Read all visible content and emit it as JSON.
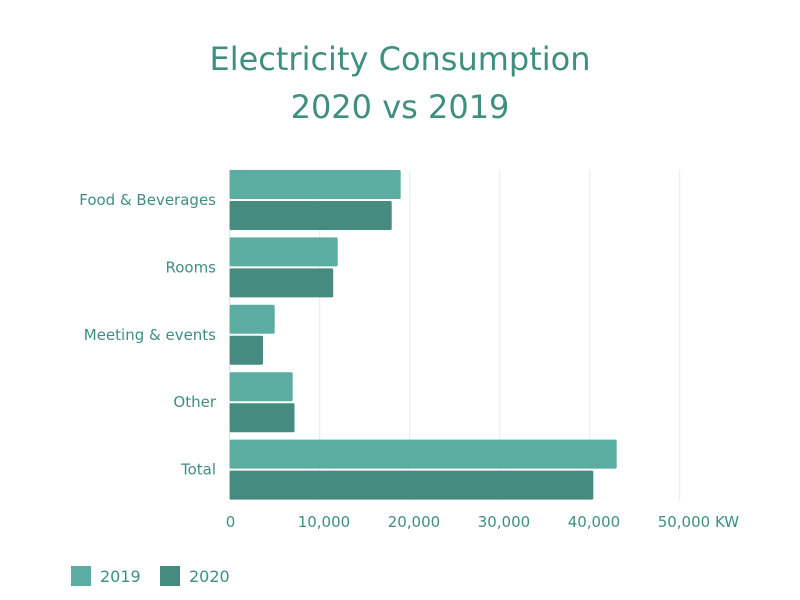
{
  "chart_data": {
    "type": "bar",
    "orientation": "horizontal",
    "title": "Electricity Consumption",
    "subtitle": "2020 vs 2019",
    "categories": [
      "Food & Beverages",
      "Rooms",
      "Meeting & events",
      "Other",
      "Total"
    ],
    "series": [
      {
        "name": "2019",
        "color": "#5aada0",
        "values": [
          19000,
          12000,
          5000,
          7000,
          43000
        ]
      },
      {
        "name": "2020",
        "color": "#458b80",
        "values": [
          18000,
          11500,
          3700,
          7200,
          40400
        ]
      }
    ],
    "xlim": [
      0,
      50000
    ],
    "xticks": [
      0,
      10000,
      20000,
      30000,
      40000,
      50000
    ],
    "xtick_labels": [
      "0",
      "10,000",
      "20,000",
      "30,000",
      "40,000",
      "50,000 KW"
    ],
    "grid": "vertical",
    "legend": "bottom-left",
    "text_color": "#3f8f80"
  }
}
